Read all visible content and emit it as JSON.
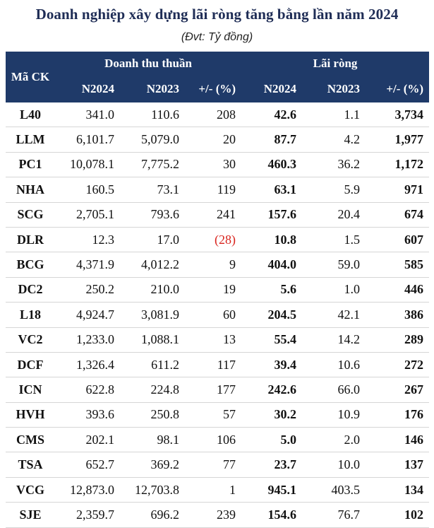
{
  "title": "Doanh nghiệp xây dựng lãi ròng tăng bằng lần năm 2024",
  "subtitle": "(Đvt: Tỷ đồng)",
  "headers": {
    "code": "Mã CK",
    "revenue_group": "Doanh thu thuần",
    "profit_group": "Lãi ròng",
    "sub": [
      "N2024",
      "N2023",
      "+/- (%)",
      "N2024",
      "N2023",
      "+/- (%)"
    ]
  },
  "rows": [
    {
      "code": "L40",
      "rev24": "341.0",
      "rev23": "110.6",
      "rev_chg": "208",
      "np24": "42.6",
      "np23": "1.1",
      "np_chg": "3,734",
      "rev_chg_negative": false
    },
    {
      "code": "LLM",
      "rev24": "6,101.7",
      "rev23": "5,079.0",
      "rev_chg": "20",
      "np24": "87.7",
      "np23": "4.2",
      "np_chg": "1,977",
      "rev_chg_negative": false
    },
    {
      "code": "PC1",
      "rev24": "10,078.1",
      "rev23": "7,775.2",
      "rev_chg": "30",
      "np24": "460.3",
      "np23": "36.2",
      "np_chg": "1,172",
      "rev_chg_negative": false
    },
    {
      "code": "NHA",
      "rev24": "160.5",
      "rev23": "73.1",
      "rev_chg": "119",
      "np24": "63.1",
      "np23": "5.9",
      "np_chg": "971",
      "rev_chg_negative": false
    },
    {
      "code": "SCG",
      "rev24": "2,705.1",
      "rev23": "793.6",
      "rev_chg": "241",
      "np24": "157.6",
      "np23": "20.4",
      "np_chg": "674",
      "rev_chg_negative": false
    },
    {
      "code": "DLR",
      "rev24": "12.3",
      "rev23": "17.0",
      "rev_chg": "(28)",
      "np24": "10.8",
      "np23": "1.5",
      "np_chg": "607",
      "rev_chg_negative": true
    },
    {
      "code": "BCG",
      "rev24": "4,371.9",
      "rev23": "4,012.2",
      "rev_chg": "9",
      "np24": "404.0",
      "np23": "59.0",
      "np_chg": "585",
      "rev_chg_negative": false
    },
    {
      "code": "DC2",
      "rev24": "250.2",
      "rev23": "210.0",
      "rev_chg": "19",
      "np24": "5.6",
      "np23": "1.0",
      "np_chg": "446",
      "rev_chg_negative": false
    },
    {
      "code": "L18",
      "rev24": "4,924.7",
      "rev23": "3,081.9",
      "rev_chg": "60",
      "np24": "204.5",
      "np23": "42.1",
      "np_chg": "386",
      "rev_chg_negative": false
    },
    {
      "code": "VC2",
      "rev24": "1,233.0",
      "rev23": "1,088.1",
      "rev_chg": "13",
      "np24": "55.4",
      "np23": "14.2",
      "np_chg": "289",
      "rev_chg_negative": false
    },
    {
      "code": "DCF",
      "rev24": "1,326.4",
      "rev23": "611.2",
      "rev_chg": "117",
      "np24": "39.4",
      "np23": "10.6",
      "np_chg": "272",
      "rev_chg_negative": false
    },
    {
      "code": "ICN",
      "rev24": "622.8",
      "rev23": "224.8",
      "rev_chg": "177",
      "np24": "242.6",
      "np23": "66.0",
      "np_chg": "267",
      "rev_chg_negative": false
    },
    {
      "code": "HVH",
      "rev24": "393.6",
      "rev23": "250.8",
      "rev_chg": "57",
      "np24": "30.2",
      "np23": "10.9",
      "np_chg": "176",
      "rev_chg_negative": false
    },
    {
      "code": "CMS",
      "rev24": "202.1",
      "rev23": "98.1",
      "rev_chg": "106",
      "np24": "5.0",
      "np23": "2.0",
      "np_chg": "146",
      "rev_chg_negative": false
    },
    {
      "code": "TSA",
      "rev24": "652.7",
      "rev23": "369.2",
      "rev_chg": "77",
      "np24": "23.7",
      "np23": "10.0",
      "np_chg": "137",
      "rev_chg_negative": false
    },
    {
      "code": "VCG",
      "rev24": "12,873.0",
      "rev23": "12,703.8",
      "rev_chg": "1",
      "np24": "945.1",
      "np23": "403.5",
      "np_chg": "134",
      "rev_chg_negative": false
    },
    {
      "code": "SJE",
      "rev24": "2,359.7",
      "rev23": "696.2",
      "rev_chg": "239",
      "np24": "154.6",
      "np23": "76.7",
      "np_chg": "102",
      "rev_chg_negative": false
    }
  ],
  "colors": {
    "title": "#1f2d56",
    "header_bg": "#1f3a69",
    "negative": "#d9231d"
  }
}
